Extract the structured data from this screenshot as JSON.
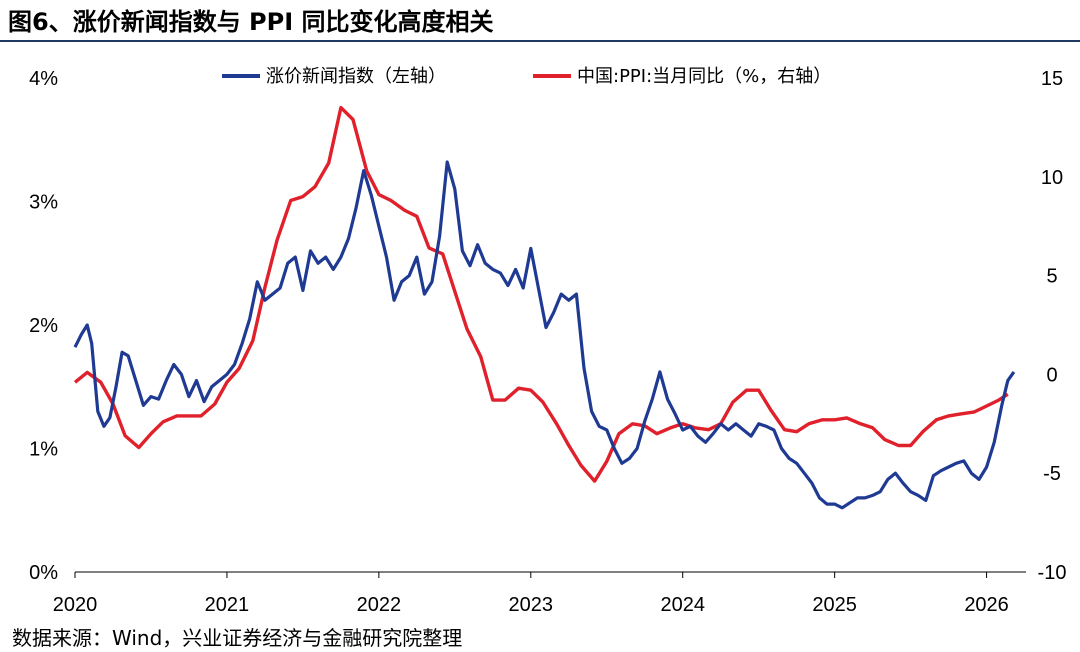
{
  "figure_title": "图6、涨价新闻指数与 PPI 同比变化高度相关",
  "source_note": "数据来源：Wind，兴业证券经济与金融研究院整理",
  "colors": {
    "left_series": "#1f3a93",
    "right_series": "#e0202a",
    "title_rule": "#1f3864"
  },
  "chart_data": {
    "type": "line",
    "title": "涨价新闻指数与 PPI 同比变化高度相关",
    "x_ticks": [
      "2020",
      "2021",
      "2022",
      "2023",
      "2024",
      "2025",
      "2026"
    ],
    "x_range": [
      2020.0,
      2026.22
    ],
    "left_axis": {
      "ticks": [
        "0%",
        "1%",
        "2%",
        "3%",
        "4%"
      ],
      "range": [
        0,
        4
      ]
    },
    "right_axis": {
      "ticks": [
        "-10",
        "-5",
        "0",
        "5",
        "10",
        "15"
      ],
      "range": [
        -10,
        15
      ]
    },
    "legend": {
      "position": "top",
      "entries": [
        "涨价新闻指数（左轴）",
        "中国:PPI:当月同比（%，右轴）"
      ]
    },
    "series": [
      {
        "name": "涨价新闻指数（左轴）",
        "axis": "left",
        "x": [
          2020.0,
          2020.04,
          2020.08,
          2020.11,
          2020.15,
          2020.19,
          2020.23,
          2020.27,
          2020.31,
          2020.35,
          2020.4,
          2020.45,
          2020.5,
          2020.55,
          2020.6,
          2020.65,
          2020.7,
          2020.75,
          2020.8,
          2020.85,
          2020.9,
          2020.95,
          2021.0,
          2021.05,
          2021.1,
          2021.15,
          2021.2,
          2021.25,
          2021.3,
          2021.35,
          2021.4,
          2021.45,
          2021.5,
          2021.55,
          2021.6,
          2021.65,
          2021.7,
          2021.75,
          2021.8,
          2021.85,
          2021.9,
          2021.95,
          2022.0,
          2022.05,
          2022.1,
          2022.15,
          2022.2,
          2022.25,
          2022.3,
          2022.35,
          2022.4,
          2022.45,
          2022.5,
          2022.55,
          2022.6,
          2022.65,
          2022.7,
          2022.75,
          2022.8,
          2022.85,
          2022.9,
          2022.95,
          2023.0,
          2023.05,
          2023.1,
          2023.15,
          2023.2,
          2023.25,
          2023.3,
          2023.35,
          2023.4,
          2023.45,
          2023.5,
          2023.55,
          2023.6,
          2023.65,
          2023.7,
          2023.75,
          2023.8,
          2023.85,
          2023.9,
          2023.95,
          2024.0,
          2024.05,
          2024.1,
          2024.15,
          2024.2,
          2024.25,
          2024.3,
          2024.35,
          2024.4,
          2024.45,
          2024.5,
          2024.55,
          2024.6,
          2024.65,
          2024.7,
          2024.75,
          2024.8,
          2024.85,
          2024.9,
          2024.95,
          2025.0,
          2025.05,
          2025.1,
          2025.15,
          2025.2,
          2025.25,
          2025.3,
          2025.35,
          2025.4,
          2025.45,
          2025.5,
          2025.55,
          2025.6,
          2025.65,
          2025.7,
          2025.75,
          2025.8,
          2025.85,
          2025.9,
          2025.95,
          2026.0,
          2026.05,
          2026.1,
          2026.14,
          2026.18
        ],
        "values": [
          1.82,
          1.92,
          2.0,
          1.85,
          1.3,
          1.18,
          1.25,
          1.5,
          1.78,
          1.75,
          1.55,
          1.35,
          1.42,
          1.4,
          1.55,
          1.68,
          1.6,
          1.42,
          1.55,
          1.38,
          1.5,
          1.55,
          1.6,
          1.68,
          1.85,
          2.05,
          2.35,
          2.2,
          2.25,
          2.3,
          2.5,
          2.55,
          2.28,
          2.6,
          2.5,
          2.55,
          2.45,
          2.55,
          2.7,
          2.95,
          3.25,
          3.05,
          2.8,
          2.55,
          2.2,
          2.35,
          2.4,
          2.55,
          2.25,
          2.35,
          2.72,
          3.32,
          3.1,
          2.6,
          2.48,
          2.65,
          2.5,
          2.45,
          2.42,
          2.32,
          2.45,
          2.3,
          2.62,
          2.3,
          1.98,
          2.1,
          2.25,
          2.2,
          2.25,
          1.65,
          1.3,
          1.18,
          1.15,
          1.0,
          0.88,
          0.92,
          1.0,
          1.22,
          1.4,
          1.62,
          1.4,
          1.28,
          1.15,
          1.18,
          1.1,
          1.05,
          1.12,
          1.2,
          1.15,
          1.2,
          1.15,
          1.1,
          1.2,
          1.18,
          1.15,
          1.0,
          0.92,
          0.88,
          0.8,
          0.72,
          0.6,
          0.55,
          0.55,
          0.52,
          0.56,
          0.6,
          0.6,
          0.62,
          0.65,
          0.75,
          0.8,
          0.72,
          0.65,
          0.62,
          0.58,
          0.78,
          0.82,
          0.85,
          0.88,
          0.9,
          0.8,
          0.75,
          0.85,
          1.05,
          1.35,
          1.55,
          1.62
        ]
      },
      {
        "name": "中国:PPI:当月同比（%，右轴）",
        "axis": "right",
        "x": [
          2020.0,
          2020.08,
          2020.17,
          2020.25,
          2020.33,
          2020.42,
          2020.5,
          2020.58,
          2020.67,
          2020.75,
          2020.83,
          2020.92,
          2021.0,
          2021.08,
          2021.17,
          2021.25,
          2021.33,
          2021.42,
          2021.5,
          2021.58,
          2021.67,
          2021.75,
          2021.83,
          2021.92,
          2022.0,
          2022.08,
          2022.17,
          2022.25,
          2022.33,
          2022.42,
          2022.5,
          2022.58,
          2022.67,
          2022.75,
          2022.83,
          2022.92,
          2023.0,
          2023.08,
          2023.17,
          2023.25,
          2023.33,
          2023.42,
          2023.5,
          2023.58,
          2023.67,
          2023.75,
          2023.83,
          2023.92,
          2024.0,
          2024.08,
          2024.17,
          2024.25,
          2024.33,
          2024.42,
          2024.5,
          2024.58,
          2024.67,
          2024.75,
          2024.83,
          2024.92,
          2025.0,
          2025.08,
          2025.17,
          2025.25,
          2025.33,
          2025.42,
          2025.5,
          2025.58,
          2025.67,
          2025.75,
          2025.83,
          2025.92,
          2026.0,
          2026.08,
          2026.14
        ],
        "values": [
          -0.4,
          0.1,
          -0.4,
          -1.5,
          -3.1,
          -3.7,
          -3.0,
          -2.4,
          -2.1,
          -2.1,
          -2.1,
          -1.5,
          -0.4,
          0.3,
          1.7,
          4.4,
          6.8,
          8.8,
          9.0,
          9.5,
          10.7,
          13.5,
          12.9,
          10.3,
          9.1,
          8.8,
          8.3,
          8.0,
          6.4,
          6.1,
          4.2,
          2.3,
          0.9,
          -1.3,
          -1.3,
          -0.7,
          -0.8,
          -1.4,
          -2.5,
          -3.6,
          -4.6,
          -5.4,
          -4.4,
          -3.0,
          -2.5,
          -2.6,
          -3.0,
          -2.7,
          -2.5,
          -2.7,
          -2.8,
          -2.5,
          -1.4,
          -0.8,
          -0.8,
          -1.8,
          -2.8,
          -2.9,
          -2.5,
          -2.3,
          -2.3,
          -2.2,
          -2.5,
          -2.7,
          -3.3,
          -3.6,
          -3.6,
          -2.9,
          -2.3,
          -2.1,
          -2.0,
          -1.9,
          -1.6,
          -1.3,
          -1.0
        ]
      }
    ]
  }
}
